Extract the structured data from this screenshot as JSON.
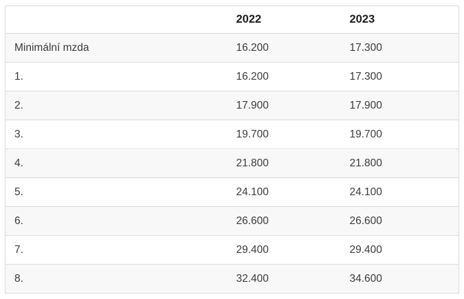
{
  "chart_data": {
    "type": "table",
    "columns": [
      "",
      "2022",
      "2023"
    ],
    "rows": [
      [
        "Minimální mzda",
        "16.200",
        "17.300"
      ],
      [
        "1.",
        "16.200",
        "17.300"
      ],
      [
        "2.",
        "17.900",
        "17.900"
      ],
      [
        "3.",
        "19.700",
        "19.700"
      ],
      [
        "4.",
        "21.800",
        "21.800"
      ],
      [
        "5.",
        "24.100",
        "24.100"
      ],
      [
        "6.",
        "26.600",
        "26.600"
      ],
      [
        "7.",
        "29.400",
        "29.400"
      ],
      [
        "8.",
        "32.400",
        "34.600"
      ]
    ],
    "layout": {
      "stripe_rows": "odd body rows shaded",
      "alignment": "left"
    }
  },
  "colors": {
    "stripe": "#f8f8f8",
    "border": "#dcdcdc",
    "header_text": "#1e1e1e",
    "body_text": "#3b3b3b",
    "background": "#ffffff"
  }
}
